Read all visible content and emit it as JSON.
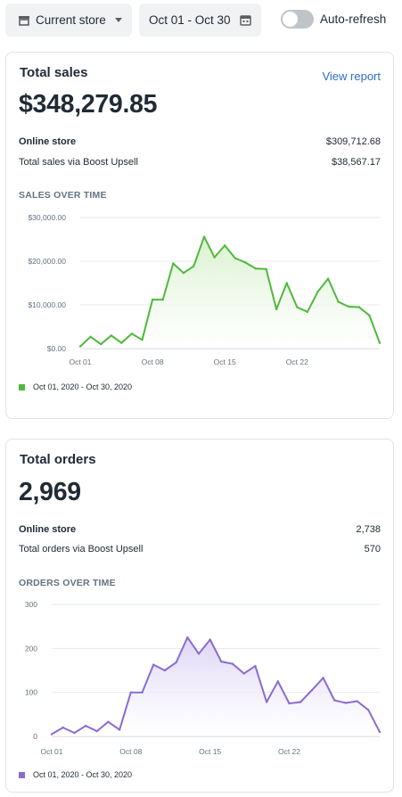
{
  "toolbar": {
    "store_label": "Current store",
    "date_label": "Oct 01 - Oct 30",
    "autorefresh_label": "Auto-refresh",
    "autorefresh_on": false
  },
  "sales_card": {
    "title": "Total sales",
    "link": "View report",
    "value": "$348,279.85",
    "rows": [
      {
        "label": "Online store",
        "value": "$309,712.68"
      },
      {
        "label": "Total sales via Boost Upsell",
        "value": "$38,567.17"
      }
    ],
    "chart_heading": "SALES OVER TIME",
    "legend": "Oct 01, 2020 - Oct 30, 2020",
    "color": "#50b83c"
  },
  "orders_card": {
    "title": "Total orders",
    "value": "2,969",
    "rows": [
      {
        "label": "Online store",
        "value": "2,738"
      },
      {
        "label": "Total orders via Boost Upsell",
        "value": "570"
      }
    ],
    "chart_heading": "ORDERS OVER TIME",
    "legend": "Oct 01, 2020 - Oct 30, 2020",
    "color": "#8a6bd1"
  },
  "chart_data": [
    {
      "type": "area",
      "title": "SALES OVER TIME",
      "x": [
        "Oct 01",
        "Oct 02",
        "Oct 03",
        "Oct 04",
        "Oct 05",
        "Oct 06",
        "Oct 07",
        "Oct 08",
        "Oct 09",
        "Oct 10",
        "Oct 11",
        "Oct 12",
        "Oct 13",
        "Oct 14",
        "Oct 15",
        "Oct 16",
        "Oct 17",
        "Oct 18",
        "Oct 19",
        "Oct 20",
        "Oct 21",
        "Oct 22",
        "Oct 23",
        "Oct 24",
        "Oct 25",
        "Oct 26",
        "Oct 27",
        "Oct 28",
        "Oct 29",
        "Oct 30"
      ],
      "xticks": [
        "Oct 01",
        "Oct 08",
        "Oct 15",
        "Oct 22"
      ],
      "yticks": [
        "$0.00",
        "$10,000.00",
        "$20,000.00",
        "$30,000.00"
      ],
      "ylim": [
        0,
        30000
      ],
      "series": [
        {
          "name": "Oct 01, 2020 - Oct 30, 2020",
          "values": [
            500,
            2700,
            1000,
            3000,
            1300,
            3400,
            2000,
            11200,
            11200,
            19500,
            17300,
            18900,
            25600,
            20900,
            23600,
            20700,
            19700,
            18300,
            18200,
            9000,
            15000,
            9500,
            8400,
            13000,
            16000,
            10700,
            9600,
            9500,
            7600,
            1300
          ]
        }
      ]
    },
    {
      "type": "area",
      "title": "ORDERS OVER TIME",
      "x": [
        "Oct 01",
        "Oct 02",
        "Oct 03",
        "Oct 04",
        "Oct 05",
        "Oct 06",
        "Oct 07",
        "Oct 08",
        "Oct 09",
        "Oct 10",
        "Oct 11",
        "Oct 12",
        "Oct 13",
        "Oct 14",
        "Oct 15",
        "Oct 16",
        "Oct 17",
        "Oct 18",
        "Oct 19",
        "Oct 20",
        "Oct 21",
        "Oct 22",
        "Oct 23",
        "Oct 24",
        "Oct 25",
        "Oct 26",
        "Oct 27",
        "Oct 28",
        "Oct 29",
        "Oct 30"
      ],
      "xticks": [
        "Oct 01",
        "Oct 08",
        "Oct 15",
        "Oct 22"
      ],
      "yticks": [
        "0",
        "100",
        "200",
        "300"
      ],
      "ylim": [
        0,
        300
      ],
      "series": [
        {
          "name": "Oct 01, 2020 - Oct 30, 2020",
          "values": [
            5,
            20,
            8,
            24,
            12,
            33,
            15,
            100,
            100,
            163,
            150,
            168,
            225,
            188,
            220,
            170,
            165,
            143,
            160,
            78,
            125,
            75,
            78,
            105,
            133,
            82,
            76,
            80,
            60,
            10
          ]
        }
      ]
    }
  ]
}
